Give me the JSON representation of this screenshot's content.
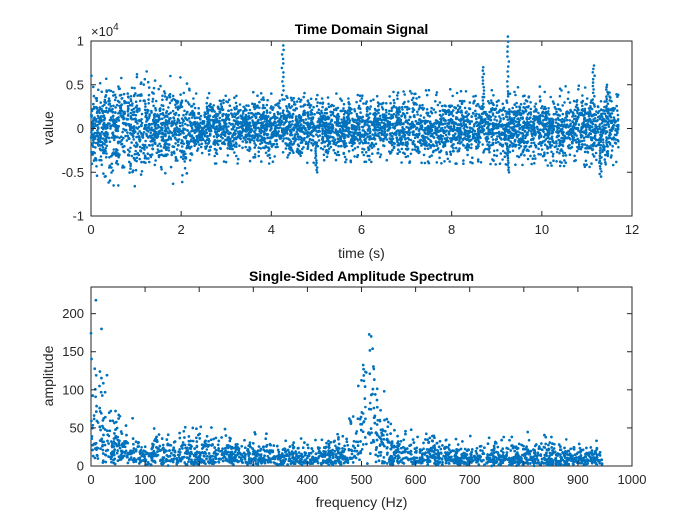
{
  "chart_data": [
    {
      "type": "scatter",
      "title": "Time Domain Signal",
      "xlabel": "time (s)",
      "ylabel": "value",
      "xlim": [
        0,
        12
      ],
      "ylim": [
        -10000,
        10000
      ],
      "xticks": [
        0,
        2,
        4,
        6,
        8,
        10,
        12
      ],
      "yticks": [
        -1,
        -0.5,
        0,
        0.5,
        1
      ],
      "yticks_exponent_label": "×10",
      "yticks_exponent_power": "4",
      "grid": false,
      "legend": "none",
      "marker_color": "#0072BD",
      "series": [
        {
          "x_range": [
            0,
            11.7
          ],
          "envelope": [
            {
              "x": 0.0,
              "y_min": -5000,
              "y_max": 6500
            },
            {
              "x": 0.5,
              "y_min": -6500,
              "y_max": 6500
            },
            {
              "x": 1.0,
              "y_min": -7000,
              "y_max": 7000
            },
            {
              "x": 1.5,
              "y_min": -6000,
              "y_max": 6000
            },
            {
              "x": 2.0,
              "y_min": -6500,
              "y_max": 6000
            },
            {
              "x": 2.3,
              "y_min": -4000,
              "y_max": 4000
            },
            {
              "x": 4.0,
              "y_min": -4000,
              "y_max": 4200
            },
            {
              "x": 6.0,
              "y_min": -3800,
              "y_max": 4000
            },
            {
              "x": 8.0,
              "y_min": -4000,
              "y_max": 4500
            },
            {
              "x": 10.0,
              "y_min": -4200,
              "y_max": 4800
            },
            {
              "x": 11.7,
              "y_min": -4500,
              "y_max": 5000
            }
          ],
          "spikes": [
            {
              "x": 4.25,
              "y": 9500
            },
            {
              "x": 8.7,
              "y": 7000
            },
            {
              "x": 9.25,
              "y": 10500
            },
            {
              "x": 11.15,
              "y": 7200
            },
            {
              "x": 11.45,
              "y": 5000
            },
            {
              "x": 5.0,
              "y": -5000
            },
            {
              "x": 9.25,
              "y": -5000
            },
            {
              "x": 11.3,
              "y": -5500
            }
          ]
        }
      ]
    },
    {
      "type": "scatter",
      "title": "Single-Sided Amplitude Spectrum",
      "xlabel": "frequency (Hz)",
      "ylabel": "amplitude",
      "xlim": [
        0,
        1000
      ],
      "ylim": [
        0,
        235
      ],
      "xticks": [
        0,
        100,
        200,
        300,
        400,
        500,
        600,
        700,
        800,
        900,
        1000
      ],
      "yticks": [
        0,
        50,
        100,
        150,
        200
      ],
      "grid": false,
      "legend": "none",
      "marker_color": "#0072BD",
      "series": [
        {
          "x_range": [
            0,
            945
          ],
          "baseline": [
            {
              "x": 0,
              "typ": 80,
              "max": 230
            },
            {
              "x": 10,
              "typ": 70,
              "max": 235
            },
            {
              "x": 30,
              "typ": 45,
              "max": 140
            },
            {
              "x": 60,
              "typ": 28,
              "max": 80
            },
            {
              "x": 100,
              "typ": 22,
              "max": 65
            },
            {
              "x": 200,
              "typ": 20,
              "max": 55
            },
            {
              "x": 300,
              "typ": 17,
              "max": 45
            },
            {
              "x": 400,
              "typ": 15,
              "max": 40
            },
            {
              "x": 470,
              "typ": 18,
              "max": 45
            },
            {
              "x": 500,
              "typ": 60,
              "max": 120
            },
            {
              "x": 515,
              "typ": 110,
              "max": 180
            },
            {
              "x": 530,
              "typ": 60,
              "max": 130
            },
            {
              "x": 560,
              "typ": 20,
              "max": 50
            },
            {
              "x": 700,
              "typ": 14,
              "max": 40
            },
            {
              "x": 800,
              "typ": 16,
              "max": 45
            },
            {
              "x": 945,
              "typ": 12,
              "max": 40
            }
          ]
        }
      ]
    }
  ]
}
